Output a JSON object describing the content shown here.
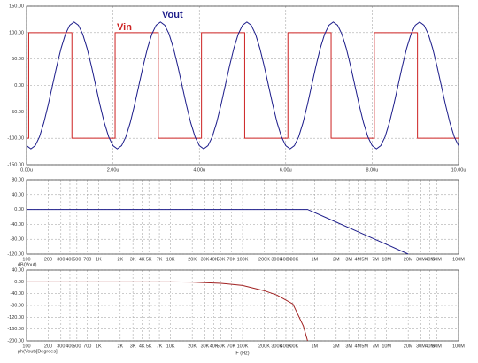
{
  "chart_data": [
    {
      "type": "line",
      "xlim": [
        0,
        10
      ],
      "ylim": [
        -150,
        150
      ],
      "grid": true,
      "xticks": [
        {
          "value": 0,
          "label": "0.00u"
        },
        {
          "value": 2,
          "label": "2.00u"
        },
        {
          "value": 4,
          "label": "4.00u"
        },
        {
          "value": 6,
          "label": "6.00u"
        },
        {
          "value": 8,
          "label": "8.00u"
        },
        {
          "value": 10,
          "label": "10.00u"
        }
      ],
      "yticks": [
        {
          "value": 150,
          "label": "150.00"
        },
        {
          "value": 100,
          "label": "100.00"
        },
        {
          "value": 50,
          "label": "50.00"
        },
        {
          "value": 0,
          "label": "0.00"
        },
        {
          "value": -50,
          "label": "-50.00"
        },
        {
          "value": -100,
          "label": "-100.00"
        },
        {
          "value": -150,
          "label": "-150.00"
        }
      ],
      "series": [
        {
          "name": "Vin",
          "color": "#cc2222",
          "x": [
            0,
            0.05,
            0.05,
            1.05,
            1.05,
            2.05,
            2.05,
            3.05,
            3.05,
            4.05,
            4.05,
            5.05,
            5.05,
            6.05,
            6.05,
            7.05,
            7.05,
            8.05,
            8.05,
            9.05,
            9.05,
            10
          ],
          "values": [
            -100,
            -100,
            100,
            100,
            -100,
            -100,
            100,
            100,
            -100,
            -100,
            100,
            100,
            -100,
            -100,
            100,
            100,
            -100,
            -100,
            100,
            100,
            -100,
            -100
          ]
        },
        {
          "name": "Vout",
          "color": "#1c1c8a",
          "x": [
            0,
            0.1,
            0.2,
            0.3,
            0.4,
            0.5,
            0.6,
            0.7,
            0.8,
            0.9,
            1,
            1.1,
            1.2,
            1.3,
            1.4,
            1.5,
            1.6,
            1.7,
            1.8,
            1.9,
            2,
            2.1,
            2.2,
            2.3,
            2.4,
            2.5,
            2.6,
            2.7,
            2.8,
            2.9,
            3,
            3.1,
            3.2,
            3.3,
            3.4,
            3.5,
            3.6,
            3.7,
            3.8,
            3.9,
            4,
            4.1,
            4.2,
            4.3,
            4.4,
            4.5,
            4.6,
            4.7,
            4.8,
            4.9,
            5,
            5.1,
            5.2,
            5.3,
            5.4,
            5.5,
            5.6,
            5.7,
            5.8,
            5.9,
            6,
            6.1,
            6.2,
            6.3,
            6.4,
            6.5,
            6.6,
            6.7,
            6.8,
            6.9,
            7,
            7.1,
            7.2,
            7.3,
            7.4,
            7.5,
            7.6,
            7.7,
            7.8,
            7.9,
            8,
            8.1,
            8.2,
            8.3,
            8.4,
            8.5,
            8.6,
            8.7,
            8.8,
            8.9,
            9,
            9.1,
            9.2,
            9.3,
            9.4,
            9.5,
            9.6,
            9.7,
            9.8,
            9.9,
            10
          ],
          "values": [
            -114.1,
            -120,
            -114.1,
            -97.1,
            -70.5,
            -37.1,
            0,
            37.1,
            70.5,
            97.1,
            114.1,
            120,
            114.1,
            97.1,
            70.5,
            37.1,
            0,
            -37.1,
            -70.5,
            -97.1,
            -114.1,
            -120,
            -114.1,
            -97.1,
            -70.5,
            -37.1,
            0,
            37.1,
            70.5,
            97.1,
            114.1,
            120,
            114.1,
            97.1,
            70.5,
            37.1,
            0,
            -37.1,
            -70.5,
            -97.1,
            -114.1,
            -120,
            -114.1,
            -97.1,
            -70.5,
            -37.1,
            0,
            37.1,
            70.5,
            97.1,
            114.1,
            120,
            114.1,
            97.1,
            70.5,
            37.1,
            0,
            -37.1,
            -70.5,
            -97.1,
            -114.1,
            -120,
            -114.1,
            -97.1,
            -70.5,
            -37.1,
            0,
            37.1,
            70.5,
            97.1,
            114.1,
            120,
            114.1,
            97.1,
            70.5,
            37.1,
            0,
            -37.1,
            -70.5,
            -97.1,
            -114.1,
            -120,
            -114.1,
            -97.1,
            -70.5,
            -37.1,
            0,
            37.1,
            70.5,
            97.1,
            114.1,
            120,
            114.1,
            97.1,
            70.5,
            37.1,
            0,
            -37.1,
            -70.5,
            -97.1,
            -114.1
          ]
        }
      ]
    },
    {
      "type": "line",
      "xscale": "log",
      "xlim": [
        100,
        100000000
      ],
      "ylim": [
        -120,
        80
      ],
      "grid": true,
      "y_label": "dB(Vout)",
      "xticks": [
        100,
        200,
        300,
        400,
        500,
        700,
        {
          "value": 1000,
          "label": "1K"
        },
        {
          "value": 2000,
          "label": "2K"
        },
        {
          "value": 3000,
          "label": "3K"
        },
        {
          "value": 4000,
          "label": "4K"
        },
        {
          "value": 5000,
          "label": "5K"
        },
        {
          "value": 7000,
          "label": "7K"
        },
        {
          "value": 10000,
          "label": "10K"
        },
        {
          "value": 20000,
          "label": "20K"
        },
        {
          "value": 30000,
          "label": "30K"
        },
        {
          "value": 40000,
          "label": "40K"
        },
        {
          "value": 50000,
          "label": "50K"
        },
        {
          "value": 70000,
          "label": "70K"
        },
        {
          "value": 100000,
          "label": "100K"
        },
        {
          "value": 200000,
          "label": "200K"
        },
        {
          "value": 300000,
          "label": "300K"
        },
        {
          "value": 400000,
          "label": "400K"
        },
        {
          "value": 500000,
          "label": "500K"
        },
        {
          "value": 1000000,
          "label": "1M"
        },
        {
          "value": 2000000,
          "label": "2M"
        },
        {
          "value": 3000000,
          "label": "3M"
        },
        {
          "value": 4000000,
          "label": "4M"
        },
        {
          "value": 5000000,
          "label": "5M"
        },
        {
          "value": 7000000,
          "label": "7M"
        },
        {
          "value": 10000000,
          "label": "10M"
        },
        {
          "value": 20000000,
          "label": "20M"
        },
        {
          "value": 30000000,
          "label": "30M"
        },
        {
          "value": 40000000,
          "label": "40M"
        },
        {
          "value": 50000000,
          "label": "50M"
        },
        {
          "value": 100000000,
          "label": "100M"
        }
      ],
      "yticks": [
        {
          "value": 80,
          "label": "80.00"
        },
        {
          "value": 40,
          "label": "40.00"
        },
        {
          "value": 0,
          "label": "0.00"
        },
        {
          "value": -40,
          "label": "-40.00"
        },
        {
          "value": -80,
          "label": "-80.00"
        },
        {
          "value": -120,
          "label": "-120.00"
        }
      ],
      "series": [
        {
          "color": "#1c1c8a",
          "x": [
            100,
            1000,
            10000,
            100000,
            800000,
            1000000,
            2000000,
            5000000,
            10000000,
            20000000
          ],
          "values": [
            0,
            0,
            0,
            0,
            0,
            -8.3,
            -34,
            -68,
            -94,
            -120
          ]
        }
      ]
    },
    {
      "type": "line",
      "xscale": "log",
      "xlim": [
        100,
        100000000
      ],
      "ylim": [
        -200,
        40
      ],
      "grid": true,
      "y_label": "ph(Vout)[Degrees]",
      "x_label": "F (Hz)",
      "xticks": [
        100,
        200,
        300,
        400,
        500,
        700,
        {
          "value": 1000,
          "label": "1K"
        },
        {
          "value": 2000,
          "label": "2K"
        },
        {
          "value": 3000,
          "label": "3K"
        },
        {
          "value": 4000,
          "label": "4K"
        },
        {
          "value": 5000,
          "label": "5K"
        },
        {
          "value": 7000,
          "label": "7K"
        },
        {
          "value": 10000,
          "label": "10K"
        },
        {
          "value": 20000,
          "label": "20K"
        },
        {
          "value": 30000,
          "label": "30K"
        },
        {
          "value": 40000,
          "label": "40K"
        },
        {
          "value": 50000,
          "label": "50K"
        },
        {
          "value": 70000,
          "label": "70K"
        },
        {
          "value": 100000,
          "label": "100K"
        },
        {
          "value": 200000,
          "label": "200K"
        },
        {
          "value": 300000,
          "label": "300K"
        },
        {
          "value": 400000,
          "label": "400K"
        },
        {
          "value": 500000,
          "label": "500K"
        },
        {
          "value": 1000000,
          "label": "1M"
        },
        {
          "value": 2000000,
          "label": "2M"
        },
        {
          "value": 3000000,
          "label": "3M"
        },
        {
          "value": 4000000,
          "label": "4M"
        },
        {
          "value": 5000000,
          "label": "5M"
        },
        {
          "value": 7000000,
          "label": "7M"
        },
        {
          "value": 10000000,
          "label": "10M"
        },
        {
          "value": 20000000,
          "label": "20M"
        },
        {
          "value": 30000000,
          "label": "30M"
        },
        {
          "value": 40000000,
          "label": "40M"
        },
        {
          "value": 50000000,
          "label": "50M"
        },
        {
          "value": 100000000,
          "label": "100M"
        }
      ],
      "yticks": [
        {
          "value": 40,
          "label": "40.00"
        },
        {
          "value": 0,
          "label": "0.00"
        },
        {
          "value": -40,
          "label": "-40.00"
        },
        {
          "value": -80,
          "label": "-80.00"
        },
        {
          "value": -120,
          "label": "-120.00"
        },
        {
          "value": -160,
          "label": "-160.00"
        },
        {
          "value": -200,
          "label": "-200.00"
        }
      ],
      "series": [
        {
          "color": "#a02020",
          "x": [
            100,
            1000,
            10000,
            20000,
            50000,
            100000,
            200000,
            300000,
            500000,
            700000,
            800000
          ],
          "values": [
            0,
            0,
            0,
            -1,
            -5,
            -12,
            -30,
            -45,
            -75,
            -150,
            -200
          ]
        }
      ]
    }
  ]
}
